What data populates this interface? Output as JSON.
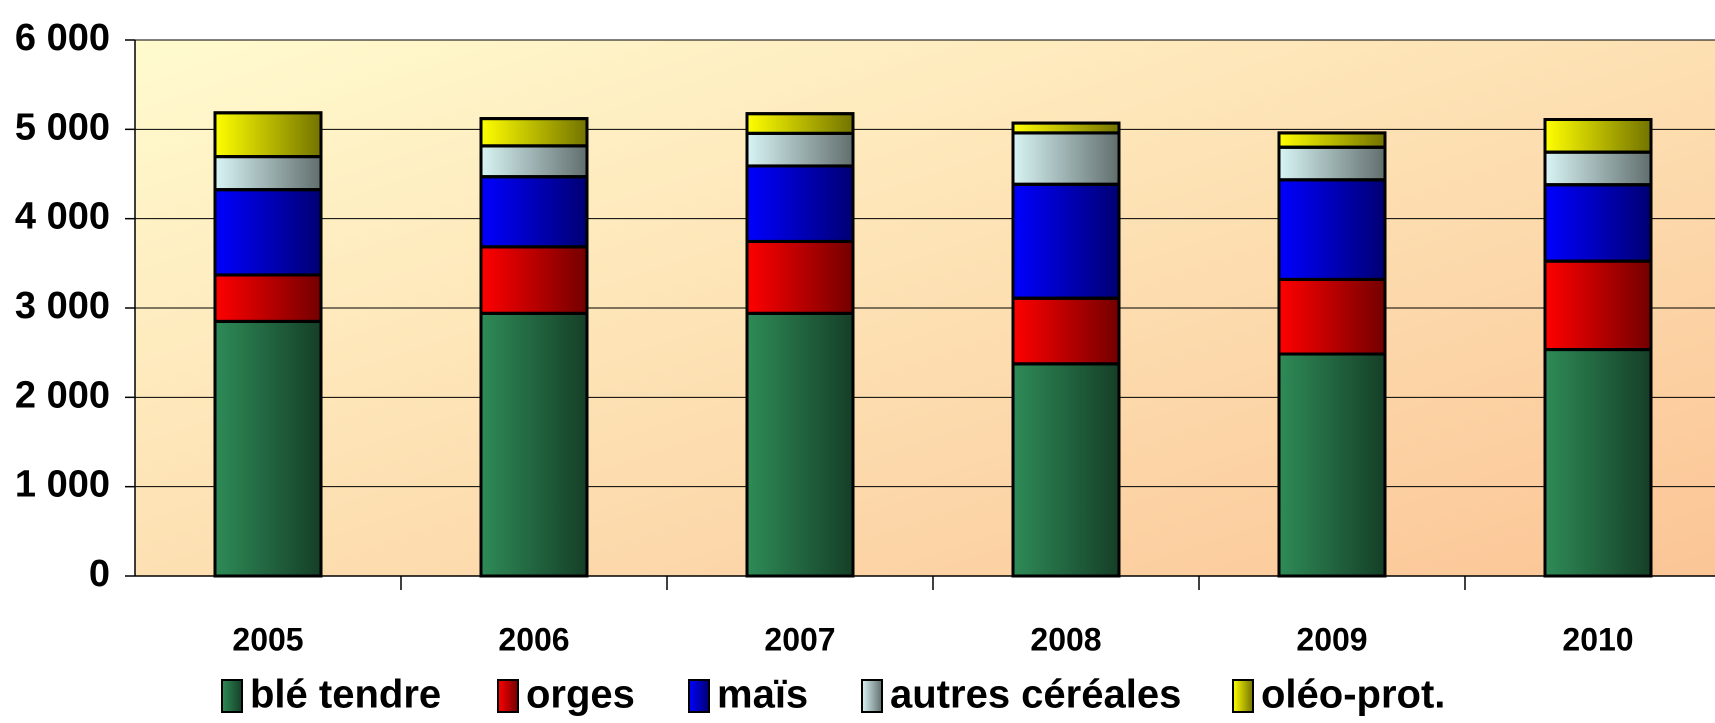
{
  "chart_data": {
    "type": "stacked_bar",
    "categories": [
      "2005",
      "2006",
      "2007",
      "2008",
      "2009",
      "2010"
    ],
    "series": [
      {
        "name": "blé tendre",
        "color": "#2e8b57",
        "values": [
          2850,
          2940,
          2940,
          2375,
          2485,
          2535
        ]
      },
      {
        "name": "orges",
        "color": "#ff0000",
        "values": [
          520,
          745,
          805,
          735,
          835,
          990
        ]
      },
      {
        "name": "maïs",
        "color": "#0000ff",
        "values": [
          955,
          785,
          845,
          1275,
          1115,
          855
        ]
      },
      {
        "name": "autres céréales",
        "color": "#d8f4f4",
        "values": [
          370,
          345,
          365,
          575,
          365,
          365
        ]
      },
      {
        "name": "oléo-prot.",
        "color": "#ffff00",
        "values": [
          490,
          305,
          220,
          110,
          160,
          365
        ]
      }
    ],
    "ylim": [
      0,
      6000
    ],
    "yticks": [
      0,
      {
        "value": 1000,
        "label": "1 000"
      },
      {
        "value": 2000,
        "label": "2 000"
      },
      {
        "value": 3000,
        "label": "3 000"
      },
      {
        "value": 4000,
        "label": "4 000"
      },
      {
        "value": 5000,
        "label": "5 000"
      },
      {
        "value": 6000,
        "label": "6 000"
      }
    ],
    "grid": true,
    "legend": "bottom"
  }
}
